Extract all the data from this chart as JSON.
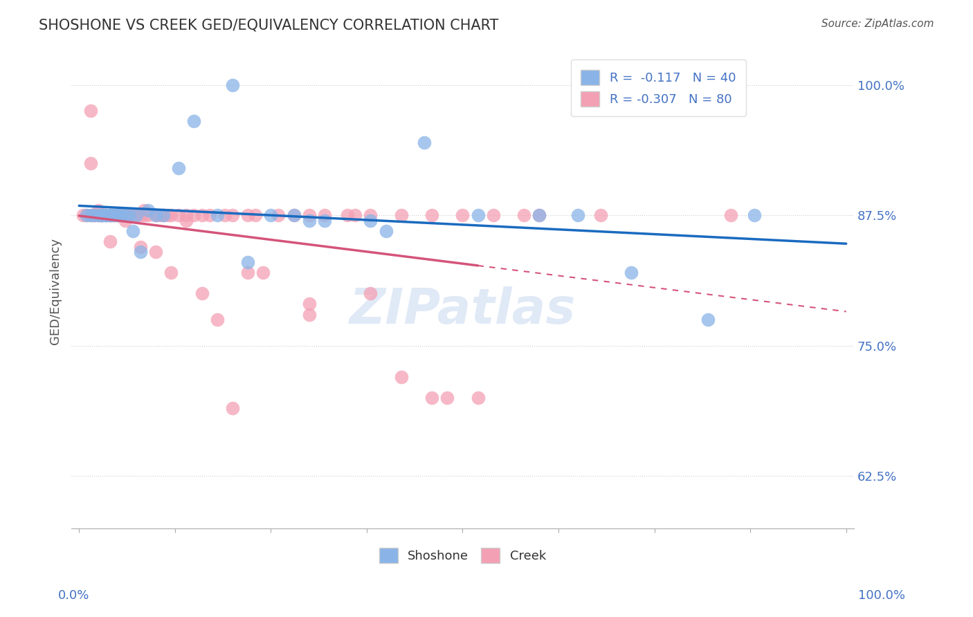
{
  "title": "SHOSHONE VS CREEK GED/EQUIVALENCY CORRELATION CHART",
  "source": "Source: ZipAtlas.com",
  "ylabel": "GED/Equivalency",
  "ytick_labels": [
    "62.5%",
    "75.0%",
    "87.5%",
    "100.0%"
  ],
  "ytick_values": [
    0.625,
    0.75,
    0.875,
    1.0
  ],
  "xlim": [
    0.0,
    1.0
  ],
  "ylim": [
    0.575,
    1.03
  ],
  "legend_blue_label": "R =  -0.117   N = 40",
  "legend_pink_label": "R = -0.307   N = 80",
  "shoshone_color": "#8ab4e8",
  "creek_color": "#f4a0b4",
  "blue_line_color": "#1a6bbf",
  "pink_line_color": "#d4547a",
  "watermark": "ZIPatlas",
  "shoshone_x": [
    0.01,
    0.015,
    0.02,
    0.025,
    0.03,
    0.03,
    0.035,
    0.035,
    0.04,
    0.04,
    0.045,
    0.05,
    0.05,
    0.055,
    0.06,
    0.065,
    0.07,
    0.075,
    0.08,
    0.09,
    0.1,
    0.11,
    0.13,
    0.15,
    0.18,
    0.22,
    0.25,
    0.32,
    0.38,
    0.45,
    0.52,
    0.6,
    0.65,
    0.72,
    0.82,
    0.88,
    0.3,
    0.4,
    0.2,
    0.28
  ],
  "shoshone_y": [
    0.875,
    0.875,
    0.875,
    0.875,
    0.875,
    0.875,
    0.875,
    0.875,
    0.875,
    0.875,
    0.875,
    0.875,
    0.875,
    0.875,
    0.875,
    0.875,
    0.86,
    0.875,
    0.84,
    0.88,
    0.875,
    0.875,
    0.92,
    0.965,
    0.875,
    0.83,
    0.875,
    0.87,
    0.87,
    0.945,
    0.875,
    0.875,
    0.875,
    0.82,
    0.775,
    0.875,
    0.87,
    0.86,
    1.0,
    0.875
  ],
  "creek_x": [
    0.005,
    0.01,
    0.015,
    0.015,
    0.02,
    0.02,
    0.025,
    0.025,
    0.03,
    0.03,
    0.03,
    0.035,
    0.035,
    0.04,
    0.04,
    0.045,
    0.045,
    0.05,
    0.05,
    0.055,
    0.055,
    0.06,
    0.065,
    0.065,
    0.07,
    0.07,
    0.075,
    0.08,
    0.085,
    0.09,
    0.1,
    0.105,
    0.11,
    0.115,
    0.12,
    0.13,
    0.14,
    0.15,
    0.16,
    0.17,
    0.19,
    0.2,
    0.22,
    0.23,
    0.26,
    0.28,
    0.3,
    0.32,
    0.35,
    0.38,
    0.42,
    0.46,
    0.5,
    0.14,
    0.18,
    0.22,
    0.3,
    0.36,
    0.48,
    0.54,
    0.6,
    0.2,
    0.085,
    0.015,
    0.025,
    0.04,
    0.06,
    0.08,
    0.1,
    0.12,
    0.16,
    0.24,
    0.3,
    0.38,
    0.42,
    0.46,
    0.52,
    0.58,
    0.68,
    0.85
  ],
  "creek_y": [
    0.875,
    0.875,
    0.875,
    0.925,
    0.875,
    0.875,
    0.875,
    0.875,
    0.875,
    0.875,
    0.875,
    0.875,
    0.875,
    0.875,
    0.875,
    0.875,
    0.875,
    0.875,
    0.875,
    0.875,
    0.875,
    0.875,
    0.875,
    0.875,
    0.875,
    0.875,
    0.875,
    0.875,
    0.875,
    0.875,
    0.875,
    0.875,
    0.875,
    0.875,
    0.875,
    0.875,
    0.875,
    0.875,
    0.875,
    0.875,
    0.875,
    0.875,
    0.875,
    0.875,
    0.875,
    0.875,
    0.875,
    0.875,
    0.875,
    0.875,
    0.875,
    0.875,
    0.875,
    0.87,
    0.775,
    0.82,
    0.78,
    0.875,
    0.7,
    0.875,
    0.875,
    0.69,
    0.88,
    0.975,
    0.88,
    0.85,
    0.87,
    0.845,
    0.84,
    0.82,
    0.8,
    0.82,
    0.79,
    0.8,
    0.72,
    0.7,
    0.7,
    0.875,
    0.875,
    0.875
  ]
}
